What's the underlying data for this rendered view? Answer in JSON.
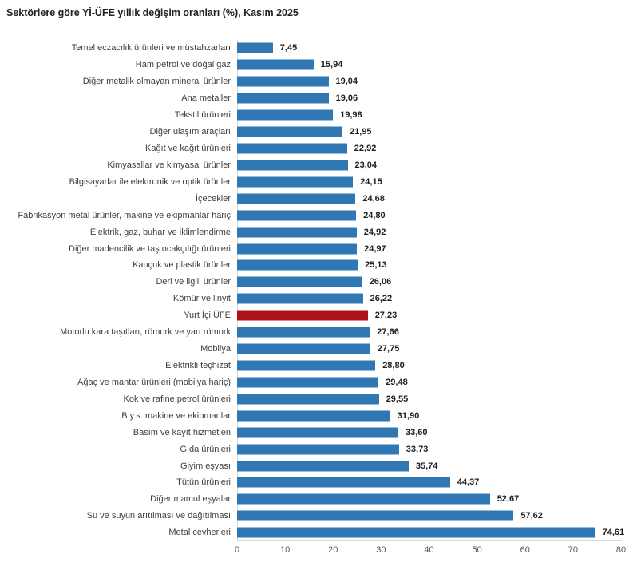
{
  "title": "Sektörlere göre Yİ-ÜFE yıllık değişim oranları (%), Kasım 2025",
  "colors": {
    "bar": "#2f78b4",
    "highlight_bar": "#ad1418",
    "axis_line": "#d9d9d9",
    "title_text": "#1f1f1f",
    "category_text": "#3f3f3f",
    "value_text": "#1f1f1f",
    "tick_text": "#555555"
  },
  "chart_data": {
    "type": "bar",
    "orientation": "horizontal",
    "title": "Sektörlere göre Yİ-ÜFE yıllık değişim oranları (%), Kasım 2025",
    "xlabel": "",
    "ylabel": "",
    "xlim": [
      0,
      80
    ],
    "x_ticks": [
      0,
      10,
      20,
      30,
      40,
      50,
      60,
      70,
      80
    ],
    "grid": false,
    "legend": false,
    "highlight_index": 16,
    "highlight_category": "Yurt İçi ÜFE",
    "categories": [
      "Temel eczacılık ürünleri ve müstahzarları",
      "Ham petrol ve doğal gaz",
      "Diğer metalik olmayan mineral ürünler",
      "Ana metaller",
      "Tekstil ürünleri",
      "Diğer ulaşım araçları",
      "Kağıt ve kağıt ürünleri",
      "Kimyasallar ve kimyasal ürünler",
      "Bilgisayarlar ile elektronik ve optik ürünler",
      "İçecekler",
      "Fabrikasyon metal ürünler, makine ve ekipmanlar hariç",
      "Elektrik, gaz, buhar ve iklimlendirme",
      "Diğer madencilik ve taş ocakçılığı ürünleri",
      "Kauçuk ve plastik ürünler",
      "Deri ve ilgili ürünler",
      "Kömür ve linyit",
      "Yurt İçi ÜFE",
      "Motorlu kara taşıtları, römork ve yarı römork",
      "Mobilya",
      "Elektrikli teçhizat",
      "Ağaç ve mantar ürünleri (mobilya hariç)",
      "Kok ve rafine petrol ürünleri",
      "B.y.s. makine ve ekipmanlar",
      "Basım ve kayıt hizmetleri",
      "Gıda ürünleri",
      "Giyim eşyası",
      "Tütün ürünleri",
      "Diğer mamul eşyalar",
      "Su ve suyun arıtılması ve dağıtılması",
      "Metal cevherleri"
    ],
    "values": [
      7.45,
      15.94,
      19.04,
      19.06,
      19.98,
      21.95,
      22.92,
      23.04,
      24.15,
      24.68,
      24.8,
      24.92,
      24.97,
      25.13,
      26.06,
      26.22,
      27.23,
      27.66,
      27.75,
      28.8,
      29.48,
      29.55,
      31.9,
      33.6,
      33.73,
      35.74,
      44.37,
      52.67,
      57.62,
      74.61
    ],
    "value_labels": [
      "7,45",
      "15,94",
      "19,04",
      "19,06",
      "19,98",
      "21,95",
      "22,92",
      "23,04",
      "24,15",
      "24,68",
      "24,80",
      "24,92",
      "24,97",
      "25,13",
      "26,06",
      "26,22",
      "27,23",
      "27,66",
      "27,75",
      "28,80",
      "29,48",
      "29,55",
      "31,90",
      "33,60",
      "33,73",
      "35,74",
      "44,37",
      "52,67",
      "57,62",
      "74,61"
    ]
  }
}
